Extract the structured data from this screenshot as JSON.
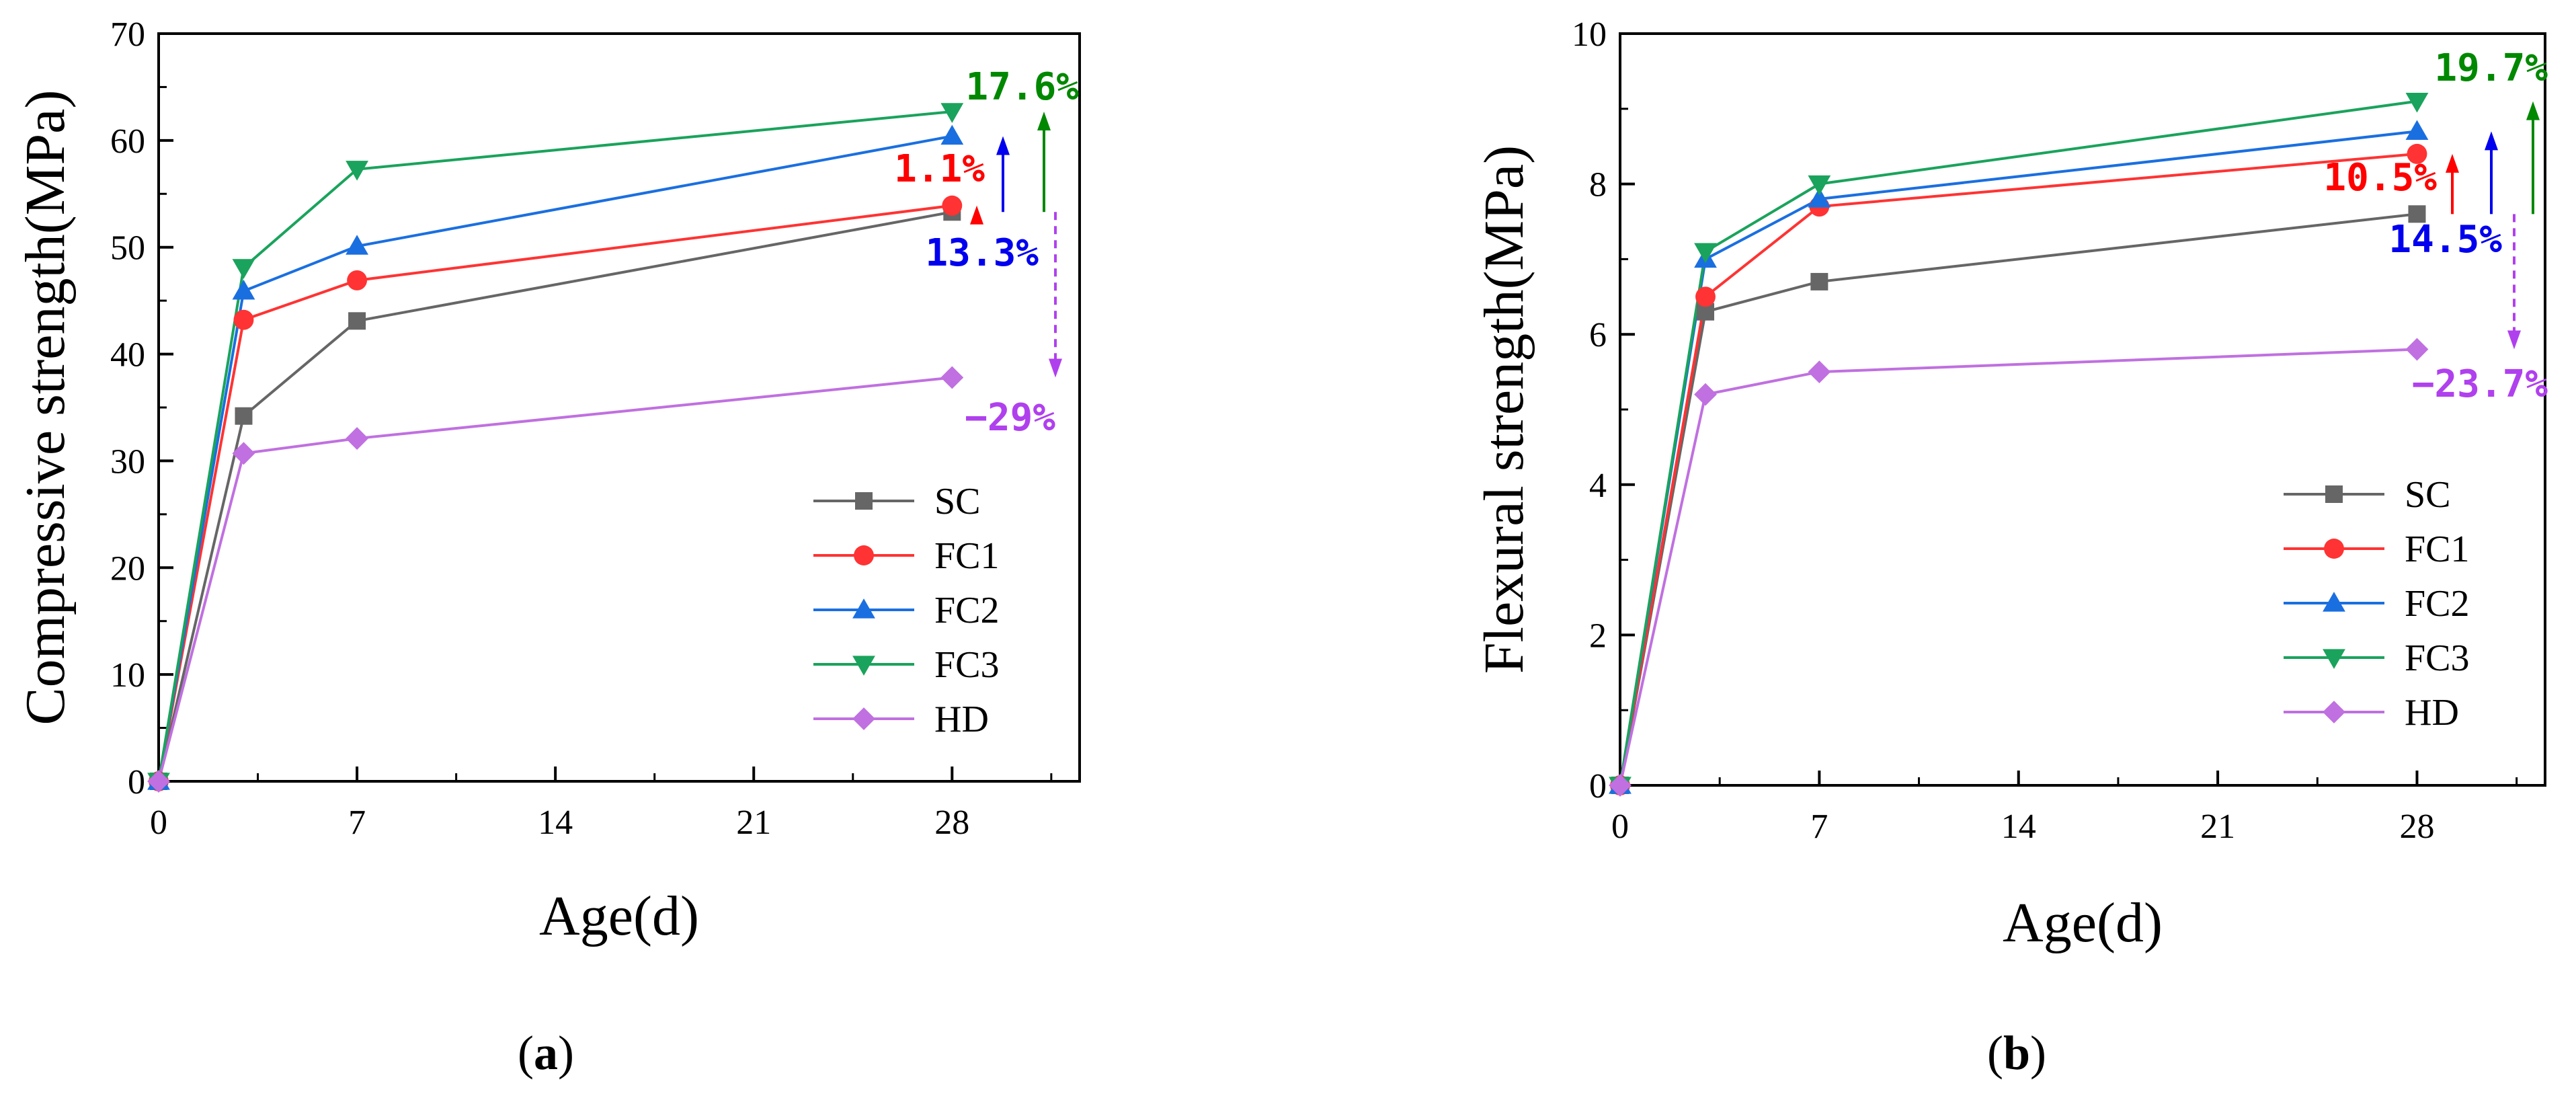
{
  "chart_data": [
    {
      "type": "line",
      "panel": "a",
      "panel_label": {
        "open": "(",
        "letter": "a",
        "close": ")"
      },
      "xlabel": "Age(d)",
      "ylabel": "Compressive strength(MPa)",
      "xlim": [
        0,
        32.5
      ],
      "ylim": [
        0,
        70
      ],
      "xticks": [
        0,
        7,
        14,
        21,
        28
      ],
      "yticks": [
        0,
        10,
        20,
        30,
        40,
        50,
        60,
        70
      ],
      "x": [
        0,
        3,
        7,
        28
      ],
      "series": [
        {
          "name": "SC",
          "color": "#666666",
          "marker": "square",
          "values": [
            0,
            34.2,
            43.1,
            53.3
          ]
        },
        {
          "name": "FC1",
          "color": "#ff3333",
          "marker": "circle",
          "values": [
            0,
            43.2,
            46.9,
            53.9
          ]
        },
        {
          "name": "FC2",
          "color": "#1a6fe0",
          "marker": "triangle-up",
          "values": [
            0,
            45.9,
            50.1,
            60.4
          ]
        },
        {
          "name": "FC3",
          "color": "#1aa35c",
          "marker": "triangle-down",
          "values": [
            0,
            48.1,
            57.3,
            62.7
          ]
        },
        {
          "name": "HD",
          "color": "#c070e0",
          "marker": "diamond",
          "values": [
            0,
            30.7,
            32.1,
            37.8
          ]
        }
      ],
      "annotations": [
        {
          "text": "1.1%",
          "color": "#ff0000",
          "series": "FC1",
          "direction": "up"
        },
        {
          "text": "13.3%",
          "color": "#0000ee",
          "series": "FC2",
          "direction": "up"
        },
        {
          "text": "17.6%",
          "color": "#008800",
          "series": "FC3",
          "direction": "up"
        },
        {
          "text": "−29%",
          "color": "#b040ee",
          "series": "HD",
          "direction": "down"
        }
      ],
      "legend_position": "lower-right"
    },
    {
      "type": "line",
      "panel": "b",
      "panel_label": {
        "open": "(",
        "letter": "b",
        "close": ")"
      },
      "xlabel": "Age(d)",
      "ylabel": "Flexural strength(MPa)",
      "xlim": [
        0,
        32.5
      ],
      "ylim": [
        0,
        10
      ],
      "xticks": [
        0,
        7,
        14,
        21,
        28
      ],
      "yticks": [
        0,
        2,
        4,
        6,
        8,
        10
      ],
      "x": [
        0,
        3,
        7,
        28
      ],
      "series": [
        {
          "name": "SC",
          "color": "#666666",
          "marker": "square",
          "values": [
            0,
            6.3,
            6.7,
            7.6
          ]
        },
        {
          "name": "FC1",
          "color": "#ff3333",
          "marker": "circle",
          "values": [
            0,
            6.5,
            7.7,
            8.4
          ]
        },
        {
          "name": "FC2",
          "color": "#1a6fe0",
          "marker": "triangle-up",
          "values": [
            0,
            7.0,
            7.8,
            8.7
          ]
        },
        {
          "name": "FC3",
          "color": "#1aa35c",
          "marker": "triangle-down",
          "values": [
            0,
            7.1,
            8.0,
            9.1
          ]
        },
        {
          "name": "HD",
          "color": "#c070e0",
          "marker": "diamond",
          "values": [
            0,
            5.2,
            5.5,
            5.8
          ]
        }
      ],
      "annotations": [
        {
          "text": "10.5%",
          "color": "#ff0000",
          "series": "FC1",
          "direction": "up"
        },
        {
          "text": "14.5%",
          "color": "#0000ee",
          "series": "FC2",
          "direction": "up"
        },
        {
          "text": "19.7%",
          "color": "#008800",
          "series": "FC3",
          "direction": "up"
        },
        {
          "text": "−23.7%",
          "color": "#b040ee",
          "series": "HD",
          "direction": "down"
        }
      ],
      "legend_position": "middle-right"
    }
  ]
}
